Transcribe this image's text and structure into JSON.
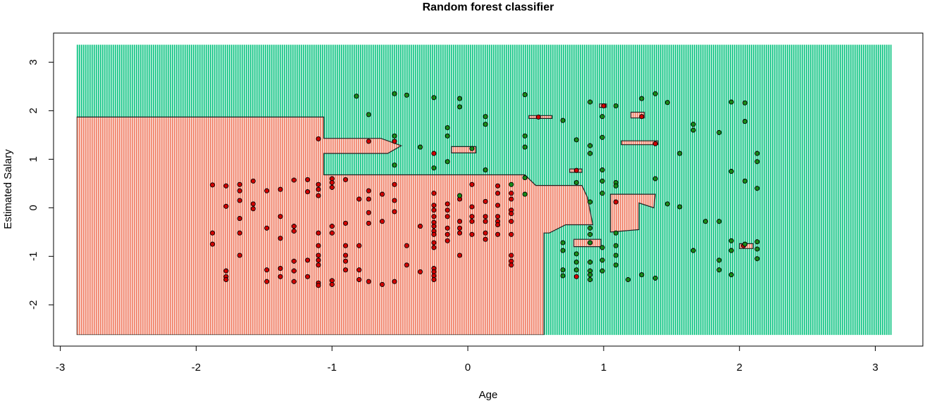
{
  "chart_data": {
    "type": "scatter",
    "title": "Random forest classifier",
    "xlabel": "Age",
    "ylabel": "Estimated Salary",
    "xlim": [
      -3.05,
      3.35
    ],
    "ylim": [
      -2.85,
      3.6
    ],
    "x_ticks": [
      -3,
      -2,
      -1,
      0,
      1,
      2,
      3
    ],
    "y_ticks": [
      -2,
      -1,
      0,
      1,
      2,
      3
    ],
    "x_tick_labels": [
      "-3",
      "-2",
      "-1",
      "0",
      "1",
      "2",
      "3"
    ],
    "y_tick_labels": [
      "-2",
      "-1",
      "0",
      "1",
      "2",
      "3"
    ],
    "grid": false,
    "legend": "none",
    "background": {
      "x_range": [
        -2.88,
        3.12
      ],
      "y_range": [
        -2.62,
        3.36
      ],
      "default_class": 1,
      "class0_regions": [
        [
          [
            -2.88,
            1.87
          ],
          [
            -1.06,
            1.87
          ],
          [
            -1.06,
            1.43
          ],
          [
            -0.64,
            1.43
          ],
          [
            -0.49,
            1.28
          ],
          [
            -0.59,
            1.12
          ],
          [
            -1.06,
            1.12
          ],
          [
            -1.06,
            0.68
          ],
          [
            0.42,
            0.68
          ],
          [
            0.5,
            0.46
          ],
          [
            0.84,
            0.46
          ],
          [
            0.88,
            0.22
          ],
          [
            0.92,
            -0.35
          ],
          [
            0.72,
            -0.35
          ],
          [
            0.6,
            -0.52
          ],
          [
            0.56,
            -0.52
          ],
          [
            0.56,
            -2.62
          ],
          [
            -2.88,
            -2.62
          ]
        ],
        [
          [
            0.45,
            1.84
          ],
          [
            0.62,
            1.84
          ],
          [
            0.62,
            1.9
          ],
          [
            0.45,
            1.9
          ]
        ],
        [
          [
            -0.12,
            1.13
          ],
          [
            0.06,
            1.13
          ],
          [
            0.06,
            1.26
          ],
          [
            -0.12,
            1.26
          ]
        ],
        [
          [
            0.97,
            2.07
          ],
          [
            1.02,
            2.07
          ],
          [
            1.02,
            2.14
          ],
          [
            0.97,
            2.14
          ]
        ],
        [
          [
            1.2,
            1.85
          ],
          [
            1.3,
            1.85
          ],
          [
            1.3,
            1.97
          ],
          [
            1.2,
            1.97
          ]
        ],
        [
          [
            1.13,
            1.3
          ],
          [
            1.4,
            1.3
          ],
          [
            1.4,
            1.38
          ],
          [
            1.13,
            1.38
          ]
        ],
        [
          [
            0.75,
            0.73
          ],
          [
            0.84,
            0.73
          ],
          [
            0.84,
            0.8
          ],
          [
            0.75,
            0.8
          ]
        ],
        [
          [
            1.05,
            -0.5
          ],
          [
            1.26,
            -0.45
          ],
          [
            1.26,
            0.1
          ],
          [
            1.37,
            0.0
          ],
          [
            1.38,
            0.28
          ],
          [
            1.05,
            0.28
          ]
        ],
        [
          [
            0.78,
            -0.8
          ],
          [
            0.98,
            -0.8
          ],
          [
            0.98,
            -0.65
          ],
          [
            0.78,
            -0.65
          ]
        ],
        [
          [
            2.0,
            -0.84
          ],
          [
            2.1,
            -0.84
          ],
          [
            2.1,
            -0.74
          ],
          [
            2.0,
            -0.74
          ]
        ]
      ],
      "colors": {
        "class0": "#F0826A",
        "class1": "#1DC78A"
      }
    },
    "series": [
      {
        "class": 0,
        "color": "#D10000",
        "points": [
          [
            -1.88,
            0.47
          ],
          [
            -1.88,
            -0.52
          ],
          [
            -1.88,
            -0.75
          ],
          [
            -1.78,
            0.45
          ],
          [
            -1.78,
            0.03
          ],
          [
            -1.78,
            -1.3
          ],
          [
            -1.78,
            -1.42
          ],
          [
            -1.78,
            -1.48
          ],
          [
            -1.68,
            0.48
          ],
          [
            -1.68,
            0.35
          ],
          [
            -1.68,
            0.15
          ],
          [
            -1.68,
            -0.22
          ],
          [
            -1.68,
            -0.52
          ],
          [
            -1.68,
            -0.98
          ],
          [
            -1.58,
            0.55
          ],
          [
            -1.58,
            0.08
          ],
          [
            -1.58,
            -0.02
          ],
          [
            -1.48,
            0.35
          ],
          [
            -1.48,
            -0.42
          ],
          [
            -1.48,
            -1.28
          ],
          [
            -1.48,
            -1.52
          ],
          [
            -1.38,
            0.38
          ],
          [
            -1.38,
            -0.18
          ],
          [
            -1.38,
            -0.63
          ],
          [
            -1.38,
            -1.25
          ],
          [
            -1.38,
            -1.42
          ],
          [
            -1.28,
            0.57
          ],
          [
            -1.28,
            -0.38
          ],
          [
            -1.28,
            -0.48
          ],
          [
            -1.28,
            -1.1
          ],
          [
            -1.28,
            -1.3
          ],
          [
            -1.28,
            -1.52
          ],
          [
            -1.18,
            0.58
          ],
          [
            -1.18,
            0.33
          ],
          [
            -1.18,
            -1.08
          ],
          [
            -1.18,
            -1.42
          ],
          [
            -1.1,
            1.42
          ],
          [
            -1.1,
            0.48
          ],
          [
            -1.1,
            0.38
          ],
          [
            -1.1,
            0.25
          ],
          [
            -1.1,
            -0.52
          ],
          [
            -1.1,
            -0.78
          ],
          [
            -1.1,
            -0.98
          ],
          [
            -1.1,
            -1.08
          ],
          [
            -1.1,
            -1.18
          ],
          [
            -1.1,
            -1.55
          ],
          [
            -1.1,
            -1.6
          ],
          [
            -1.0,
            0.6
          ],
          [
            -1.0,
            0.52
          ],
          [
            -1.0,
            0.42
          ],
          [
            -1.0,
            -0.38
          ],
          [
            -1.0,
            -0.52
          ],
          [
            -1.0,
            -1.5
          ],
          [
            -1.0,
            -1.58
          ],
          [
            -0.9,
            0.58
          ],
          [
            -0.9,
            -0.32
          ],
          [
            -0.9,
            -0.78
          ],
          [
            -0.9,
            -0.98
          ],
          [
            -0.9,
            -1.1
          ],
          [
            -0.9,
            -1.28
          ],
          [
            -0.8,
            0.18
          ],
          [
            -0.8,
            -0.78
          ],
          [
            -0.8,
            -1.28
          ],
          [
            -0.8,
            -1.48
          ],
          [
            -0.73,
            1.37
          ],
          [
            -0.73,
            0.35
          ],
          [
            -0.73,
            0.18
          ],
          [
            -0.73,
            -0.1
          ],
          [
            -0.73,
            -0.32
          ],
          [
            -0.73,
            -1.52
          ],
          [
            -0.63,
            0.28
          ],
          [
            -0.63,
            -0.28
          ],
          [
            -0.63,
            -1.58
          ],
          [
            -0.54,
            1.37
          ],
          [
            -0.54,
            0.48
          ],
          [
            -0.54,
            0.15
          ],
          [
            -0.54,
            -0.08
          ],
          [
            -0.54,
            -1.52
          ],
          [
            -0.45,
            -0.78
          ],
          [
            -0.45,
            -1.18
          ],
          [
            -0.35,
            -0.38
          ],
          [
            -0.35,
            -1.32
          ],
          [
            -0.25,
            1.12
          ],
          [
            -0.25,
            0.3
          ],
          [
            -0.25,
            0.05
          ],
          [
            -0.25,
            -0.05
          ],
          [
            -0.25,
            -0.18
          ],
          [
            -0.25,
            -0.3
          ],
          [
            -0.25,
            -0.38
          ],
          [
            -0.25,
            -0.48
          ],
          [
            -0.25,
            -0.55
          ],
          [
            -0.25,
            -0.72
          ],
          [
            -0.25,
            -0.82
          ],
          [
            -0.25,
            -1.25
          ],
          [
            -0.25,
            -1.32
          ],
          [
            -0.25,
            -1.4
          ],
          [
            -0.25,
            -1.48
          ],
          [
            -0.15,
            0.08
          ],
          [
            -0.15,
            -0.05
          ],
          [
            -0.15,
            -0.18
          ],
          [
            -0.15,
            -0.42
          ],
          [
            -0.15,
            -0.55
          ],
          [
            -0.15,
            -0.68
          ],
          [
            -0.06,
            0.18
          ],
          [
            -0.06,
            -0.28
          ],
          [
            -0.06,
            -0.42
          ],
          [
            -0.06,
            -0.52
          ],
          [
            -0.06,
            -0.98
          ],
          [
            0.03,
            0.48
          ],
          [
            0.03,
            0.02
          ],
          [
            0.03,
            -0.18
          ],
          [
            0.03,
            -0.28
          ],
          [
            0.03,
            -0.55
          ],
          [
            0.13,
            0.13
          ],
          [
            0.13,
            -0.18
          ],
          [
            0.13,
            -0.28
          ],
          [
            0.13,
            -0.52
          ],
          [
            0.13,
            -0.65
          ],
          [
            0.22,
            0.45
          ],
          [
            0.22,
            0.3
          ],
          [
            0.22,
            0.05
          ],
          [
            0.22,
            -0.18
          ],
          [
            0.22,
            -0.28
          ],
          [
            0.22,
            -0.35
          ],
          [
            0.22,
            -0.55
          ],
          [
            0.32,
            0.3
          ],
          [
            0.32,
            0.18
          ],
          [
            0.32,
            -0.05
          ],
          [
            0.32,
            -0.12
          ],
          [
            0.32,
            -0.28
          ],
          [
            0.32,
            -0.55
          ],
          [
            0.32,
            -0.98
          ],
          [
            0.32,
            -1.1
          ],
          [
            0.32,
            -1.18
          ],
          [
            0.52,
            1.87
          ],
          [
            0.8,
            0.77
          ],
          [
            0.8,
            -1.42
          ],
          [
            0.9,
            -0.72
          ],
          [
            1.0,
            2.1
          ],
          [
            1.09,
            0.12
          ],
          [
            1.28,
            1.88
          ],
          [
            1.38,
            1.32
          ],
          [
            2.03,
            -0.78
          ]
        ]
      },
      {
        "class": 1,
        "color": "#188A18",
        "points": [
          [
            -0.82,
            2.3
          ],
          [
            -0.73,
            1.92
          ],
          [
            -0.54,
            2.35
          ],
          [
            -0.54,
            1.48
          ],
          [
            -0.54,
            0.88
          ],
          [
            -0.45,
            2.32
          ],
          [
            -0.35,
            1.25
          ],
          [
            -0.25,
            2.27
          ],
          [
            -0.25,
            0.82
          ],
          [
            -0.15,
            1.65
          ],
          [
            -0.15,
            1.48
          ],
          [
            -0.15,
            0.95
          ],
          [
            -0.06,
            2.25
          ],
          [
            -0.06,
            2.08
          ],
          [
            -0.06,
            0.25
          ],
          [
            0.03,
            1.22
          ],
          [
            0.13,
            1.88
          ],
          [
            0.13,
            1.72
          ],
          [
            0.13,
            0.78
          ],
          [
            0.32,
            0.48
          ],
          [
            0.42,
            2.33
          ],
          [
            0.42,
            1.48
          ],
          [
            0.42,
            1.25
          ],
          [
            0.42,
            0.62
          ],
          [
            0.42,
            0.28
          ],
          [
            0.7,
            1.8
          ],
          [
            0.7,
            -0.72
          ],
          [
            0.7,
            -0.88
          ],
          [
            0.7,
            -1.28
          ],
          [
            0.7,
            -1.4
          ],
          [
            0.8,
            1.4
          ],
          [
            0.8,
            0.52
          ],
          [
            0.8,
            -0.95
          ],
          [
            0.8,
            -1.12
          ],
          [
            0.8,
            -1.28
          ],
          [
            0.9,
            2.18
          ],
          [
            0.9,
            1.28
          ],
          [
            0.9,
            1.12
          ],
          [
            0.9,
            0.12
          ],
          [
            0.9,
            -0.42
          ],
          [
            0.9,
            -0.55
          ],
          [
            0.9,
            -0.72
          ],
          [
            0.9,
            -1.12
          ],
          [
            0.9,
            -1.3
          ],
          [
            0.9,
            -1.38
          ],
          [
            0.9,
            -1.48
          ],
          [
            0.99,
            1.88
          ],
          [
            0.99,
            1.45
          ],
          [
            0.99,
            0.78
          ],
          [
            0.99,
            0.55
          ],
          [
            0.99,
            0.3
          ],
          [
            0.99,
            -0.82
          ],
          [
            0.99,
            -1.08
          ],
          [
            0.99,
            -1.3
          ],
          [
            1.09,
            2.1
          ],
          [
            1.09,
            0.52
          ],
          [
            1.09,
            0.45
          ],
          [
            1.09,
            -0.52
          ],
          [
            1.09,
            -0.78
          ],
          [
            1.09,
            -0.98
          ],
          [
            1.09,
            -1.18
          ],
          [
            1.18,
            -1.48
          ],
          [
            1.28,
            2.25
          ],
          [
            1.28,
            -1.38
          ],
          [
            1.38,
            2.35
          ],
          [
            1.38,
            0.6
          ],
          [
            1.38,
            -1.45
          ],
          [
            1.47,
            2.17
          ],
          [
            1.47,
            0.08
          ],
          [
            1.56,
            1.12
          ],
          [
            1.56,
            0.02
          ],
          [
            1.66,
            1.72
          ],
          [
            1.66,
            1.6
          ],
          [
            1.66,
            -0.88
          ],
          [
            1.75,
            -0.28
          ],
          [
            1.85,
            1.55
          ],
          [
            1.85,
            -0.28
          ],
          [
            1.85,
            -1.08
          ],
          [
            1.85,
            -1.28
          ],
          [
            1.94,
            2.18
          ],
          [
            1.94,
            0.75
          ],
          [
            1.94,
            -0.68
          ],
          [
            1.94,
            -0.88
          ],
          [
            1.94,
            -1.38
          ],
          [
            2.04,
            2.16
          ],
          [
            2.04,
            1.78
          ],
          [
            2.04,
            0.55
          ],
          [
            2.04,
            -0.75
          ],
          [
            2.13,
            1.12
          ],
          [
            2.13,
            0.95
          ],
          [
            2.13,
            0.4
          ],
          [
            2.13,
            -0.7
          ],
          [
            2.13,
            -0.85
          ],
          [
            2.13,
            -1.05
          ]
        ]
      }
    ]
  }
}
